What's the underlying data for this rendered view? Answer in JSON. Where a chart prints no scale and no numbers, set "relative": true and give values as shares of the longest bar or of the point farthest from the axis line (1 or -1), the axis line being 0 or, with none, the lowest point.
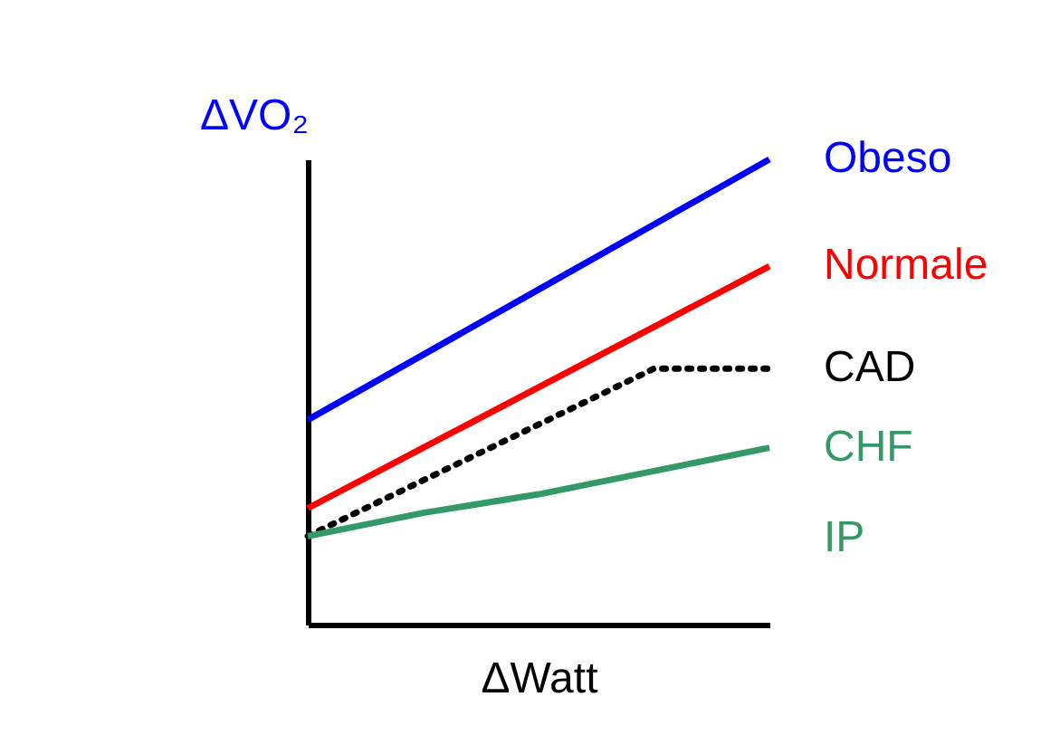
{
  "chart_data": {
    "type": "line",
    "relative": true,
    "xlabel": "ΔWatt",
    "ylabel": "ΔVO₂",
    "tick_labels": false,
    "grid": false,
    "legend": false,
    "marker": "none",
    "categories": [
      null,
      null,
      null,
      null,
      null
    ],
    "series": [
      {
        "name": "Obeso",
        "color": "#0000ff",
        "values": [
          0.44,
          0.58,
          0.72,
          0.86,
          1.0
        ],
        "line_style": "solid"
      },
      {
        "name": "Normale",
        "color": "#ff0000",
        "values": [
          0.25,
          0.38,
          0.51,
          0.64,
          0.77
        ],
        "line_style": "solid"
      },
      {
        "name": "CAD",
        "color": "#000000",
        "values": [
          0.19,
          0.31,
          0.43,
          0.55,
          0.55
        ],
        "line_style": "dotted"
      },
      {
        "name": "CHF",
        "color": "#339966",
        "values": [
          0.19,
          0.24,
          0.28,
          0.33,
          0.38
        ],
        "line_style": "solid"
      }
    ],
    "annotations": [
      "IP"
    ]
  }
}
